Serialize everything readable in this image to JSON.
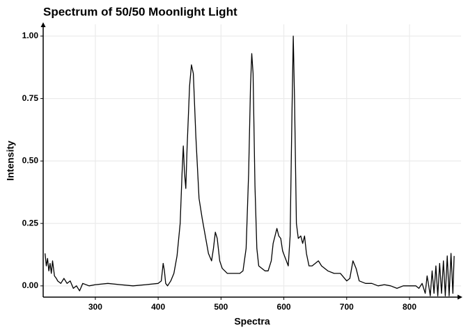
{
  "chart_data": {
    "type": "line",
    "title": "Spectrum of 50/50 Moonlight Light",
    "x_label": "Spectra",
    "y_label": "Intensity",
    "x": [
      220,
      222,
      224,
      226,
      228,
      230,
      232,
      235,
      238,
      240,
      245,
      250,
      255,
      260,
      265,
      270,
      275,
      280,
      290,
      300,
      320,
      340,
      360,
      380,
      400,
      405,
      408,
      410,
      412,
      415,
      420,
      425,
      430,
      435,
      438,
      440,
      442,
      444,
      446,
      450,
      453,
      456,
      460,
      465,
      470,
      475,
      480,
      485,
      488,
      491,
      494,
      498,
      502,
      506,
      510,
      520,
      530,
      535,
      540,
      544,
      547,
      549,
      551,
      554,
      557,
      560,
      565,
      570,
      575,
      580,
      583,
      586,
      589,
      592,
      595,
      598,
      601,
      604,
      607,
      610,
      613,
      615,
      617,
      620,
      623,
      627,
      630,
      633,
      636,
      640,
      645,
      650,
      655,
      660,
      670,
      680,
      690,
      700,
      705,
      710,
      715,
      720,
      730,
      740,
      750,
      760,
      770,
      780,
      790,
      800,
      810,
      815,
      820,
      825,
      828,
      830,
      833,
      836,
      839,
      842,
      845,
      848,
      851,
      854,
      857,
      860,
      863,
      866,
      869,
      871
    ],
    "series": [
      {
        "name": "Intensity",
        "color": "#000000",
        "values": [
          0.13,
          0.08,
          0.11,
          0.06,
          0.09,
          0.05,
          0.1,
          0.04,
          0.03,
          0.02,
          0.01,
          0.03,
          0.01,
          0.02,
          -0.01,
          0.0,
          -0.02,
          0.01,
          0.0,
          0.005,
          0.01,
          0.005,
          0.0,
          0.005,
          0.01,
          0.02,
          0.09,
          0.06,
          0.01,
          0.0,
          0.02,
          0.05,
          0.12,
          0.25,
          0.45,
          0.56,
          0.45,
          0.39,
          0.55,
          0.8,
          0.885,
          0.85,
          0.6,
          0.35,
          0.27,
          0.2,
          0.13,
          0.1,
          0.15,
          0.215,
          0.19,
          0.1,
          0.07,
          0.06,
          0.05,
          0.05,
          0.05,
          0.06,
          0.15,
          0.45,
          0.8,
          0.93,
          0.85,
          0.4,
          0.15,
          0.08,
          0.07,
          0.06,
          0.06,
          0.1,
          0.17,
          0.2,
          0.23,
          0.2,
          0.19,
          0.14,
          0.12,
          0.1,
          0.08,
          0.2,
          0.7,
          1.0,
          0.75,
          0.25,
          0.19,
          0.2,
          0.17,
          0.2,
          0.13,
          0.08,
          0.08,
          0.09,
          0.1,
          0.08,
          0.06,
          0.05,
          0.05,
          0.02,
          0.03,
          0.1,
          0.07,
          0.02,
          0.01,
          0.01,
          0.0,
          0.005,
          0.0,
          -0.01,
          0.0,
          0.0,
          0.0,
          -0.01,
          0.01,
          -0.03,
          0.04,
          0.01,
          -0.04,
          0.06,
          -0.03,
          0.08,
          -0.04,
          0.09,
          -0.03,
          0.1,
          -0.04,
          0.12,
          -0.04,
          0.13,
          -0.03,
          0.12
        ]
      }
    ],
    "xlim": [
      217,
      882
    ],
    "ylim": [
      -0.045,
      1.047
    ],
    "xticks": [
      300,
      400,
      500,
      600,
      700,
      800
    ],
    "yticks": [
      {
        "value": 0,
        "label": "0.00"
      },
      {
        "value": 0.25,
        "label": "0.25"
      },
      {
        "value": 0.5,
        "label": "0.50"
      },
      {
        "value": 0.75,
        "label": "0.75"
      },
      {
        "value": 1,
        "label": "1.00"
      }
    ],
    "grid": true
  }
}
